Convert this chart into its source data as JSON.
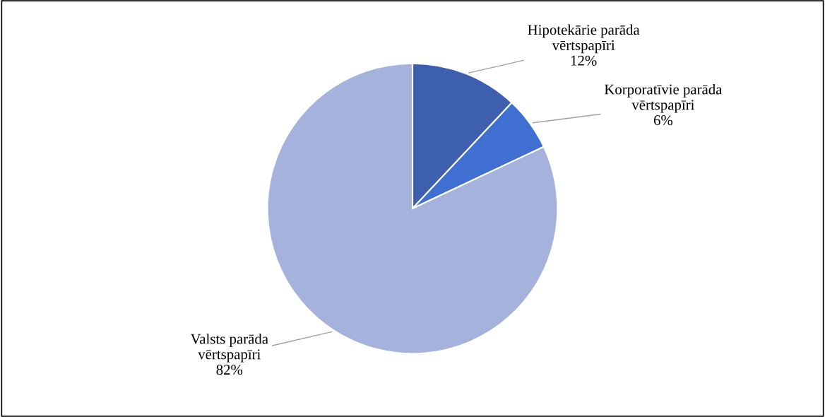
{
  "chart_data": {
    "type": "pie",
    "categories": [
      "Hipotekārie parāda\nvērtspapīri",
      "Korporatīvie parāda\nvērtspapīri",
      "Valsts parāda\nvērtspapīri"
    ],
    "values": [
      12,
      6,
      82
    ],
    "colors": [
      "#3d5fae",
      "#3f6fd0",
      "#a5b2db"
    ],
    "value_labels": [
      "12%",
      "6%",
      "82%"
    ]
  }
}
